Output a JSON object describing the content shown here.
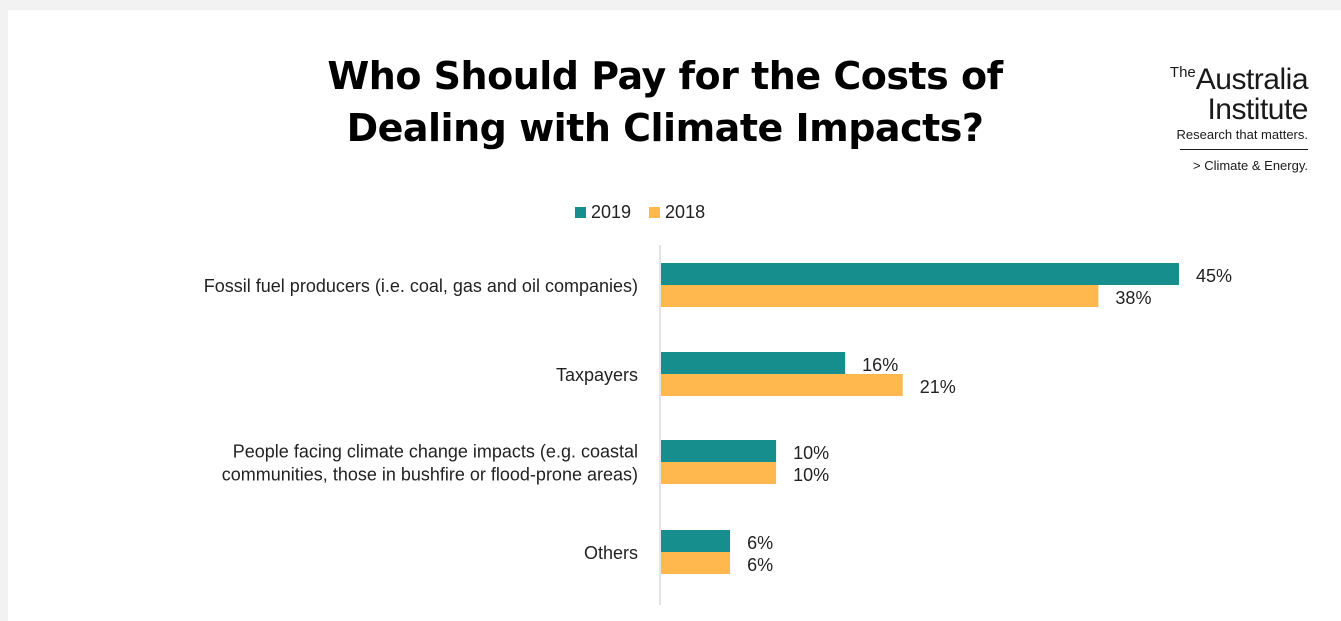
{
  "title_line1": "Who Should Pay for the Costs of",
  "title_line2": "Dealing with Climate Impacts?",
  "logo": {
    "the": "The",
    "name1": "Australia",
    "name2": "Institute",
    "tagline": "Research that matters.",
    "program": "> Climate & Energy."
  },
  "colors": {
    "2019": "#178e8e",
    "2018": "#ffb84d"
  },
  "chart_data": {
    "type": "bar",
    "orientation": "horizontal",
    "categories": [
      [
        "Fossil fuel producers (i.e. coal, gas and oil companies)"
      ],
      [
        "Taxpayers"
      ],
      [
        "People facing climate change impacts (e.g. coastal",
        "communities, those in bushfire or flood-prone areas)"
      ],
      [
        "Others"
      ]
    ],
    "series": [
      {
        "name": "2019",
        "values": [
          45,
          16,
          10,
          6
        ],
        "labels": [
          "45%",
          "16%",
          "10%",
          "6%"
        ]
      },
      {
        "name": "2018",
        "values": [
          38,
          21,
          10,
          6
        ],
        "labels": [
          "38%",
          "21%",
          "10%",
          "6%"
        ]
      }
    ],
    "legend": "top-center",
    "grid": false
  }
}
